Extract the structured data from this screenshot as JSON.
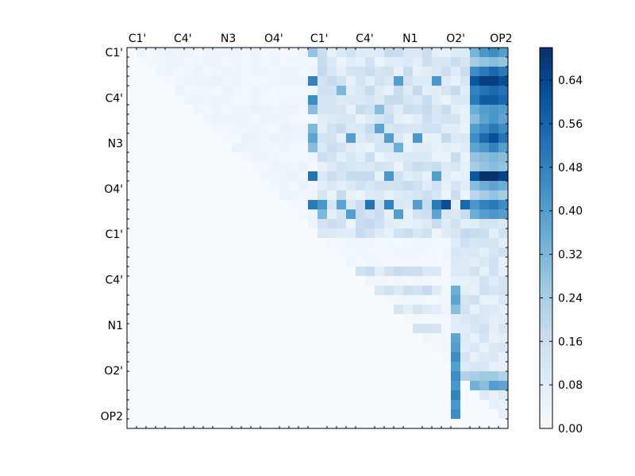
{
  "chart_data": {
    "type": "heatmap",
    "title": "",
    "xlabel": "",
    "ylabel": "",
    "grid_size": [
      40,
      40
    ],
    "x_tick_labels": [
      "C1'",
      "C4'",
      "N3",
      "O4'",
      "C1'",
      "C4'",
      "N1",
      "O2'",
      "OP2"
    ],
    "y_tick_labels": [
      "C1'",
      "C4'",
      "N3",
      "O4'",
      "C1'",
      "C4'",
      "N1",
      "O2'",
      "OP2"
    ],
    "x_axis_position": "top",
    "colormap": "Blues",
    "colorbar": {
      "range": [
        0,
        0.7
      ],
      "tick_labels": [
        "0.00",
        "0.08",
        "0.16",
        "0.24",
        "0.32",
        "0.40",
        "0.48",
        "0.56",
        "0.64"
      ],
      "placement": "right"
    },
    "values_description": "upper-triangular matrix; rows 0-19 by columns 0-39, rows 20-39 by columns 20-39, remaining cells 0",
    "strong_cells": [
      [
        0,
        36,
        0.33
      ],
      [
        0,
        37,
        0.42
      ],
      [
        0,
        38,
        0.45
      ],
      [
        0,
        39,
        0.4
      ],
      [
        1,
        36,
        0.25
      ],
      [
        1,
        37,
        0.28
      ],
      [
        1,
        38,
        0.3
      ],
      [
        1,
        39,
        0.28
      ],
      [
        2,
        36,
        0.45
      ],
      [
        2,
        37,
        0.5
      ],
      [
        2,
        38,
        0.55
      ],
      [
        2,
        39,
        0.5
      ],
      [
        3,
        36,
        0.6
      ],
      [
        3,
        37,
        0.66
      ],
      [
        3,
        38,
        0.66
      ],
      [
        3,
        39,
        0.62
      ],
      [
        4,
        36,
        0.48
      ],
      [
        4,
        37,
        0.52
      ],
      [
        4,
        38,
        0.55
      ],
      [
        4,
        39,
        0.52
      ],
      [
        5,
        36,
        0.5
      ],
      [
        5,
        37,
        0.58
      ],
      [
        5,
        38,
        0.58
      ],
      [
        5,
        39,
        0.55
      ],
      [
        6,
        36,
        0.35
      ],
      [
        6,
        37,
        0.4
      ],
      [
        6,
        38,
        0.42
      ],
      [
        6,
        39,
        0.4
      ],
      [
        7,
        36,
        0.3
      ],
      [
        7,
        37,
        0.38
      ],
      [
        7,
        38,
        0.42
      ],
      [
        7,
        39,
        0.38
      ],
      [
        8,
        36,
        0.4
      ],
      [
        8,
        37,
        0.45
      ],
      [
        8,
        38,
        0.5
      ],
      [
        8,
        39,
        0.45
      ],
      [
        9,
        36,
        0.45
      ],
      [
        9,
        37,
        0.55
      ],
      [
        9,
        38,
        0.62
      ],
      [
        9,
        39,
        0.52
      ],
      [
        10,
        36,
        0.38
      ],
      [
        10,
        37,
        0.42
      ],
      [
        10,
        38,
        0.48
      ],
      [
        10,
        39,
        0.4
      ],
      [
        11,
        36,
        0.28
      ],
      [
        11,
        37,
        0.3
      ],
      [
        11,
        38,
        0.32
      ],
      [
        11,
        39,
        0.3
      ],
      [
        12,
        36,
        0.25
      ],
      [
        12,
        37,
        0.28
      ],
      [
        12,
        38,
        0.3
      ],
      [
        12,
        39,
        0.28
      ],
      [
        13,
        36,
        0.6
      ],
      [
        13,
        37,
        0.7
      ],
      [
        13,
        38,
        0.72
      ],
      [
        13,
        39,
        0.65
      ],
      [
        14,
        36,
        0.3
      ],
      [
        14,
        37,
        0.35
      ],
      [
        14,
        38,
        0.38
      ],
      [
        14,
        39,
        0.35
      ],
      [
        15,
        36,
        0.2
      ],
      [
        15,
        37,
        0.25
      ],
      [
        15,
        38,
        0.28
      ],
      [
        15,
        39,
        0.25
      ],
      [
        16,
        36,
        0.42
      ],
      [
        16,
        37,
        0.48
      ],
      [
        16,
        38,
        0.5
      ],
      [
        16,
        39,
        0.45
      ],
      [
        17,
        36,
        0.35
      ],
      [
        17,
        37,
        0.4
      ],
      [
        17,
        38,
        0.42
      ],
      [
        17,
        39,
        0.4
      ],
      [
        3,
        19,
        0.48
      ],
      [
        5,
        19,
        0.45
      ],
      [
        13,
        19,
        0.52
      ],
      [
        8,
        19,
        0.32
      ],
      [
        9,
        19,
        0.38
      ],
      [
        10,
        19,
        0.3
      ],
      [
        6,
        19,
        0.3
      ],
      [
        0,
        19,
        0.28
      ],
      [
        16,
        19,
        0.5
      ],
      [
        16,
        20,
        0.42
      ],
      [
        16,
        22,
        0.38
      ],
      [
        16,
        25,
        0.52
      ],
      [
        16,
        27,
        0.48
      ],
      [
        16,
        30,
        0.4
      ],
      [
        16,
        32,
        0.5
      ],
      [
        16,
        33,
        0.62
      ],
      [
        16,
        35,
        0.55
      ],
      [
        17,
        20,
        0.32
      ],
      [
        17,
        23,
        0.4
      ],
      [
        17,
        28,
        0.4
      ],
      [
        17,
        32,
        0.38
      ],
      [
        3,
        28,
        0.4
      ],
      [
        3,
        32,
        0.42
      ],
      [
        9,
        23,
        0.4
      ],
      [
        9,
        27,
        0.4
      ],
      [
        9,
        30,
        0.42
      ],
      [
        13,
        27,
        0.42
      ],
      [
        13,
        32,
        0.4
      ],
      [
        8,
        26,
        0.38
      ],
      [
        4,
        22,
        0.32
      ],
      [
        6,
        26,
        0.3
      ],
      [
        10,
        28,
        0.35
      ],
      [
        25,
        34,
        0.35
      ],
      [
        26,
        34,
        0.38
      ],
      [
        27,
        34,
        0.3
      ],
      [
        30,
        34,
        0.38
      ],
      [
        31,
        34,
        0.4
      ],
      [
        32,
        34,
        0.45
      ],
      [
        33,
        34,
        0.4
      ],
      [
        34,
        34,
        0.45
      ],
      [
        35,
        34,
        0.42
      ],
      [
        36,
        34,
        0.48
      ],
      [
        37,
        34,
        0.42
      ],
      [
        38,
        34,
        0.45
      ],
      [
        34,
        35,
        0.22
      ],
      [
        34,
        36,
        0.24
      ],
      [
        34,
        37,
        0.26
      ],
      [
        34,
        38,
        0.26
      ],
      [
        34,
        39,
        0.22
      ],
      [
        35,
        36,
        0.34
      ],
      [
        35,
        37,
        0.3
      ],
      [
        35,
        38,
        0.4
      ],
      [
        35,
        39,
        0.38
      ]
    ]
  }
}
